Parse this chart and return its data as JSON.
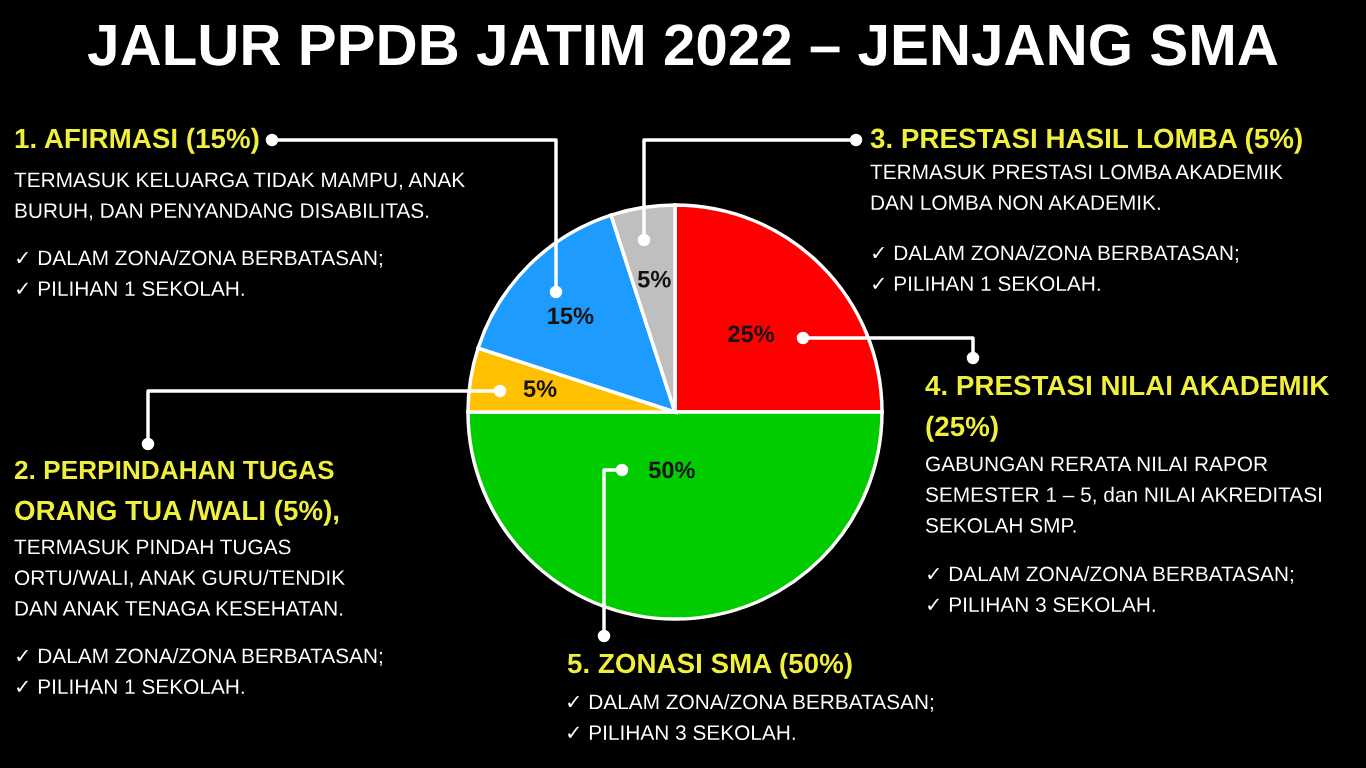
{
  "chart_data": {
    "type": "pie",
    "title": "JALUR PPDB JATIM 2022 – JENJANG SMA",
    "categories": [
      "4. PRESTASI NILAI AKADEMIK\n(25%)",
      "5. ZONASI SMA (50%)",
      "2. PERPINDAHAN TUGAS\nORANG TUA /WALI (5%)",
      "1. AFIRMASI (15%)",
      "3. PRESTASI HASIL LOMBA (5%)"
    ],
    "values": [
      25,
      50,
      5,
      15,
      5
    ],
    "colors": [
      "#ff0000",
      "#00cc00",
      "#ffc000",
      "#1e9bff",
      "#bfbfbf"
    ],
    "value_labels": [
      "25%",
      "50%",
      "5%",
      "15%",
      "5%"
    ],
    "annotations": [
      "GABUNGAN RERATA NILAI RAPOR\nSEMESTER 1 – 5, dan NILAI AKREDITASI\nSEKOLAH SMP.",
      "✓ DALAM ZONA/ZONA BERBATASAN;\n✓ PILIHAN 3 SEKOLAH.",
      "✓ DALAM ZONA/ZONA BERBATASAN;\n✓ PILIHAN 3 SEKOLAH.",
      ",",
      "TERMASUK PINDAH TUGAS\nORTU/WALI, ANAK GURU/TENDIK\nDAN ANAK TENAGA KESEHATAN.",
      "✓ DALAM ZONA/ZONA BERBATASAN;\n✓ PILIHAN 1 SEKOLAH.",
      "TERMASUK KELUARGA TIDAK MAMPU, ANAK\nBURUH, DAN PENYANDANG DISABILITAS.",
      "✓ DALAM ZONA/ZONA BERBATASAN;\n✓ PILIHAN 1 SEKOLAH.",
      "TERMASUK PRESTASI LOMBA AKADEMIK\nDAN LOMBA NON AKADEMIK.",
      "✓ DALAM ZONA/ZONA BERBATASAN;\n✓ PILIHAN 1 SEKOLAH."
    ]
  }
}
